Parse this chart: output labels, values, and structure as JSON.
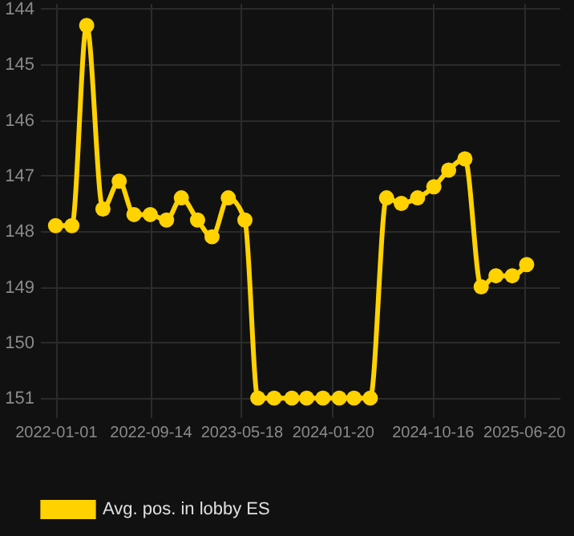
{
  "chart_data": {
    "type": "line",
    "x": [
      "2022-01-01",
      "2022-02-14",
      "2022-03-26",
      "2022-05-09",
      "2022-06-22",
      "2022-08-01",
      "2022-09-14",
      "2022-10-28",
      "2022-12-07",
      "2023-01-20",
      "2023-02-28",
      "2023-04-13",
      "2023-05-28",
      "2023-07-02",
      "2023-08-15",
      "2023-10-02",
      "2023-11-11",
      "2023-12-25",
      "2024-02-07",
      "2024-03-18",
      "2024-05-01",
      "2024-06-14",
      "2024-07-24",
      "2024-09-06",
      "2024-10-20",
      "2024-11-29",
      "2025-01-12",
      "2025-02-25",
      "2025-04-06",
      "2025-05-20",
      "2025-06-28"
    ],
    "series": [
      {
        "name": "Avg. pos. in lobby ES",
        "color": "#ffd200",
        "values": [
          147.9,
          147.9,
          144.3,
          147.6,
          147.1,
          147.7,
          147.7,
          147.8,
          147.4,
          147.8,
          148.1,
          147.4,
          147.8,
          151,
          151,
          151,
          151,
          151,
          151,
          151,
          151,
          147.4,
          147.5,
          147.4,
          147.2,
          146.9,
          146.7,
          149.0,
          148.8,
          148.8,
          148.6
        ]
      }
    ],
    "xlim": [
      "2021-11-20",
      "2025-09-25"
    ],
    "ylim": [
      151.2,
      143.9
    ],
    "xticks": [
      "2022-01-01",
      "2022-09-14",
      "2023-05-18",
      "2024-01-20",
      "2024-10-16",
      "2025-06-20"
    ],
    "yticks": [
      144,
      145,
      146,
      147,
      148,
      149,
      150,
      151
    ],
    "grid": true,
    "legend": "bottom",
    "marker": "circle",
    "line_style": "solid"
  }
}
